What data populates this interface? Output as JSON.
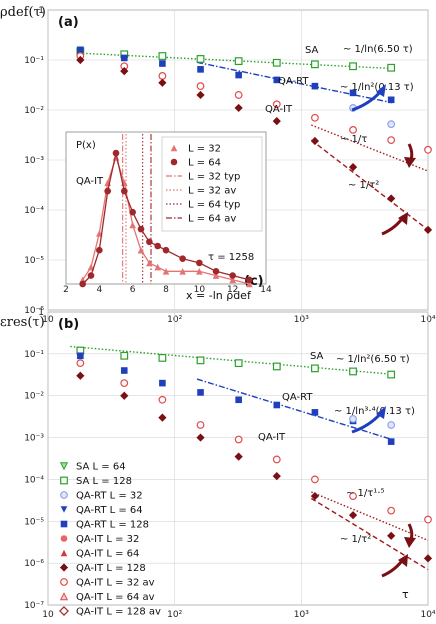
{
  "chart_data": [
    {
      "type": "scatter",
      "panel": "(a)",
      "ylabel": "ρdef(τ)",
      "xlabel": "",
      "xscale": "log",
      "yscale": "log",
      "xlim": [
        10,
        10000
      ],
      "ylim": [
        1e-06,
        1
      ],
      "x_ticks": [
        "10",
        "10²",
        "10³",
        "10⁴"
      ],
      "y_ticks": [
        "10⁻⁶",
        "10⁻⁵",
        "10⁻⁴",
        "10⁻³",
        "10⁻²",
        "10⁻¹",
        "1"
      ],
      "annotations": [
        "SA",
        "~ 1/ln(6.50 τ)",
        "QA-RT",
        "~ 1/ln²(0.13 τ)",
        "QA-IT",
        "~ 1/τ",
        "~ 1/τ²"
      ],
      "series": [
        {
          "name": "SA L = 128",
          "color": "#2ca02c",
          "marker": "square-open",
          "x": [
            18,
            40,
            80,
            160,
            320,
            640,
            1280,
            2560,
            5120
          ],
          "y": [
            0.15,
            0.13,
            0.12,
            0.105,
            0.095,
            0.088,
            0.082,
            0.075,
            0.07
          ]
        },
        {
          "name": "QA-RT L = 128",
          "color": "#1f3fbf",
          "marker": "square",
          "x": [
            18,
            40,
            80,
            160,
            320,
            640,
            1280,
            2560,
            5120
          ],
          "y": [
            0.16,
            0.11,
            0.085,
            0.065,
            0.05,
            0.04,
            0.03,
            0.022,
            0.016
          ]
        },
        {
          "name": "QA-RT L = 32",
          "color": "#8fa3e8",
          "marker": "circle-hatched",
          "x": [
            2560,
            5120
          ],
          "y": [
            0.011,
            0.0052
          ]
        },
        {
          "name": "QA-IT L = 32 av",
          "color": "#e04a4a",
          "marker": "circle-open",
          "x": [
            18,
            40,
            80,
            160,
            320,
            640,
            1280,
            2560,
            5120,
            10000
          ],
          "y": [
            0.12,
            0.075,
            0.048,
            0.03,
            0.02,
            0.013,
            0.007,
            0.004,
            0.0025,
            0.0016
          ]
        },
        {
          "name": "QA-IT L = 128",
          "color": "#7a0f14",
          "marker": "diamond",
          "x": [
            18,
            40,
            80,
            160,
            320,
            640,
            1280,
            2560,
            5120,
            10000
          ],
          "y": [
            0.1,
            0.06,
            0.035,
            0.02,
            0.011,
            0.006,
            0.0024,
            0.00072,
            0.00017,
            4e-05
          ]
        }
      ],
      "fits": [
        {
          "label": "~ 1/ln(6.50 τ)",
          "color": "#2ca02c",
          "style": "dotted",
          "x": [
            20,
            5000
          ],
          "y": [
            0.135,
            0.068
          ]
        },
        {
          "label": "~ 1/ln²(0.13 τ)",
          "color": "#1f3fbf",
          "style": "dash-dot",
          "x": [
            150,
            5200
          ],
          "y": [
            0.09,
            0.014
          ]
        },
        {
          "label": "~ 1/τ",
          "color": "#a01a1a",
          "style": "dotted",
          "x": [
            1200,
            10000
          ],
          "y": [
            0.005,
            0.0006
          ]
        },
        {
          "label": "~ 1/τ²",
          "color": "#a01a1a",
          "style": "dashed",
          "x": [
            1200,
            10000
          ],
          "y": [
            0.0025,
            4e-05
          ]
        }
      ]
    },
    {
      "type": "line",
      "panel": "(c)",
      "ylabel": "P(x)",
      "xlabel": "x = -ln ρdef",
      "xlim": [
        2,
        14
      ],
      "x_ticks": [
        "2",
        "4",
        "6",
        "8",
        "10",
        "12",
        "14"
      ],
      "annotations": [
        "QA-IT",
        "τ = 1258"
      ],
      "legend": [
        "L = 32",
        "L = 64",
        "L = 32 typ",
        "L = 32 av",
        "L = 64 typ",
        "L = 64 av"
      ],
      "series": [
        {
          "name": "L = 32",
          "color": "#e57373",
          "x": [
            3,
            3.5,
            4,
            4.5,
            5,
            5.5,
            6,
            6.5,
            7,
            7.5,
            8,
            9,
            10,
            11,
            12,
            13
          ],
          "y": [
            0.01,
            0.04,
            0.12,
            0.24,
            0.3,
            0.24,
            0.14,
            0.08,
            0.05,
            0.04,
            0.03,
            0.03,
            0.03,
            0.02,
            0.01,
            0.0
          ]
        },
        {
          "name": "L = 64",
          "color": "#a0282b",
          "x": [
            3,
            3.5,
            4,
            4.5,
            5,
            5.5,
            6,
            6.5,
            7,
            7.5,
            8,
            9,
            10,
            11,
            12,
            13
          ],
          "y": [
            0.0,
            0.02,
            0.08,
            0.22,
            0.31,
            0.22,
            0.17,
            0.13,
            0.1,
            0.09,
            0.08,
            0.06,
            0.05,
            0.03,
            0.02,
            0.01
          ]
        }
      ],
      "vlines": [
        {
          "label": "L = 32 typ",
          "x": 5.4,
          "color": "#e57373",
          "style": "dash-dot"
        },
        {
          "label": "L = 32 av",
          "x": 5.6,
          "color": "#e57373",
          "style": "dotted"
        },
        {
          "label": "L = 64 typ",
          "x": 6.6,
          "color": "#a0282b",
          "style": "dotted"
        },
        {
          "label": "L = 64 av",
          "x": 7.1,
          "color": "#a0282b",
          "style": "dash-dot"
        }
      ]
    },
    {
      "type": "scatter",
      "panel": "(b)",
      "ylabel": "εres(τ)",
      "xlabel": "τ",
      "xscale": "log",
      "yscale": "log",
      "xlim": [
        10,
        10000
      ],
      "ylim": [
        1e-07,
        1
      ],
      "x_ticks": [
        "10",
        "10²",
        "10³",
        "10⁴"
      ],
      "y_ticks": [
        "10⁻⁷",
        "10⁻⁶",
        "10⁻⁵",
        "10⁻⁴",
        "10⁻³",
        "10⁻²",
        "10⁻¹",
        "1"
      ],
      "annotations": [
        "SA",
        "~ 1/ln²(6.50 τ)",
        "QA-RT",
        "~ 1/ln³·⁴(0.13 τ)",
        "QA-IT",
        "~ 1/τ¹·⁵",
        "~ 1/τ²"
      ],
      "legend": [
        "SA L = 64",
        "SA L = 128",
        "QA-RT L = 32",
        "QA-RT L = 64",
        "QA-RT L = 128",
        "QA-IT L = 32",
        "QA-IT L = 64",
        "QA-IT L = 128",
        "QA-IT L = 32 av",
        "QA-IT L = 64 av",
        "QA-IT L = 128 av"
      ],
      "series": [
        {
          "name": "SA L = 128",
          "color": "#2ca02c",
          "marker": "square-open",
          "x": [
            18,
            40,
            80,
            160,
            320,
            640,
            1280,
            2560,
            5120
          ],
          "y": [
            0.12,
            0.09,
            0.08,
            0.07,
            0.06,
            0.05,
            0.045,
            0.038,
            0.032
          ]
        },
        {
          "name": "QA-RT L = 128",
          "color": "#1f3fbf",
          "marker": "square",
          "x": [
            18,
            40,
            80,
            160,
            320,
            640,
            1280,
            2560,
            5120
          ],
          "y": [
            0.09,
            0.04,
            0.02,
            0.012,
            0.008,
            0.006,
            0.004,
            0.0025,
            0.0008
          ]
        },
        {
          "name": "QA-RT L = 32",
          "color": "#8fa3e8",
          "marker": "circle-hatched",
          "x": [
            2560,
            5120
          ],
          "y": [
            0.0028,
            0.002
          ]
        },
        {
          "name": "QA-IT L = 32 av",
          "color": "#e04a4a",
          "marker": "circle-open",
          "x": [
            18,
            40,
            80,
            160,
            320,
            640,
            1280,
            2560,
            5120,
            10000
          ],
          "y": [
            0.06,
            0.02,
            0.008,
            0.002,
            0.0009,
            0.0003,
            0.0001,
            4e-05,
            1.8e-05,
            1.1e-05
          ]
        },
        {
          "name": "QA-IT L = 128",
          "color": "#7a0f14",
          "marker": "diamond",
          "x": [
            18,
            40,
            80,
            160,
            320,
            640,
            1280,
            2560,
            5120,
            10000
          ],
          "y": [
            0.03,
            0.01,
            0.003,
            0.001,
            0.00035,
            0.00012,
            4e-05,
            1.4e-05,
            4.5e-06,
            1.3e-06
          ]
        }
      ],
      "fits": [
        {
          "label": "~ 1/ln²(6.50 τ)",
          "color": "#2ca02c",
          "style": "dotted",
          "x": [
            15,
            5000
          ],
          "y": [
            0.15,
            0.033
          ]
        },
        {
          "label": "~ 1/ln³·⁴(0.13 τ)",
          "color": "#1f3fbf",
          "style": "dash-dot",
          "x": [
            150,
            5200
          ],
          "y": [
            0.025,
            0.0009
          ]
        },
        {
          "label": "~ 1/τ¹·⁵",
          "color": "#a01a1a",
          "style": "dotted",
          "x": [
            1200,
            10000
          ],
          "y": [
            5e-05,
            3.5e-06
          ]
        },
        {
          "label": "~ 1/τ²",
          "color": "#a01a1a",
          "style": "dashed",
          "x": [
            1200,
            10000
          ],
          "y": [
            3.5e-05,
            7e-07
          ]
        }
      ]
    }
  ]
}
